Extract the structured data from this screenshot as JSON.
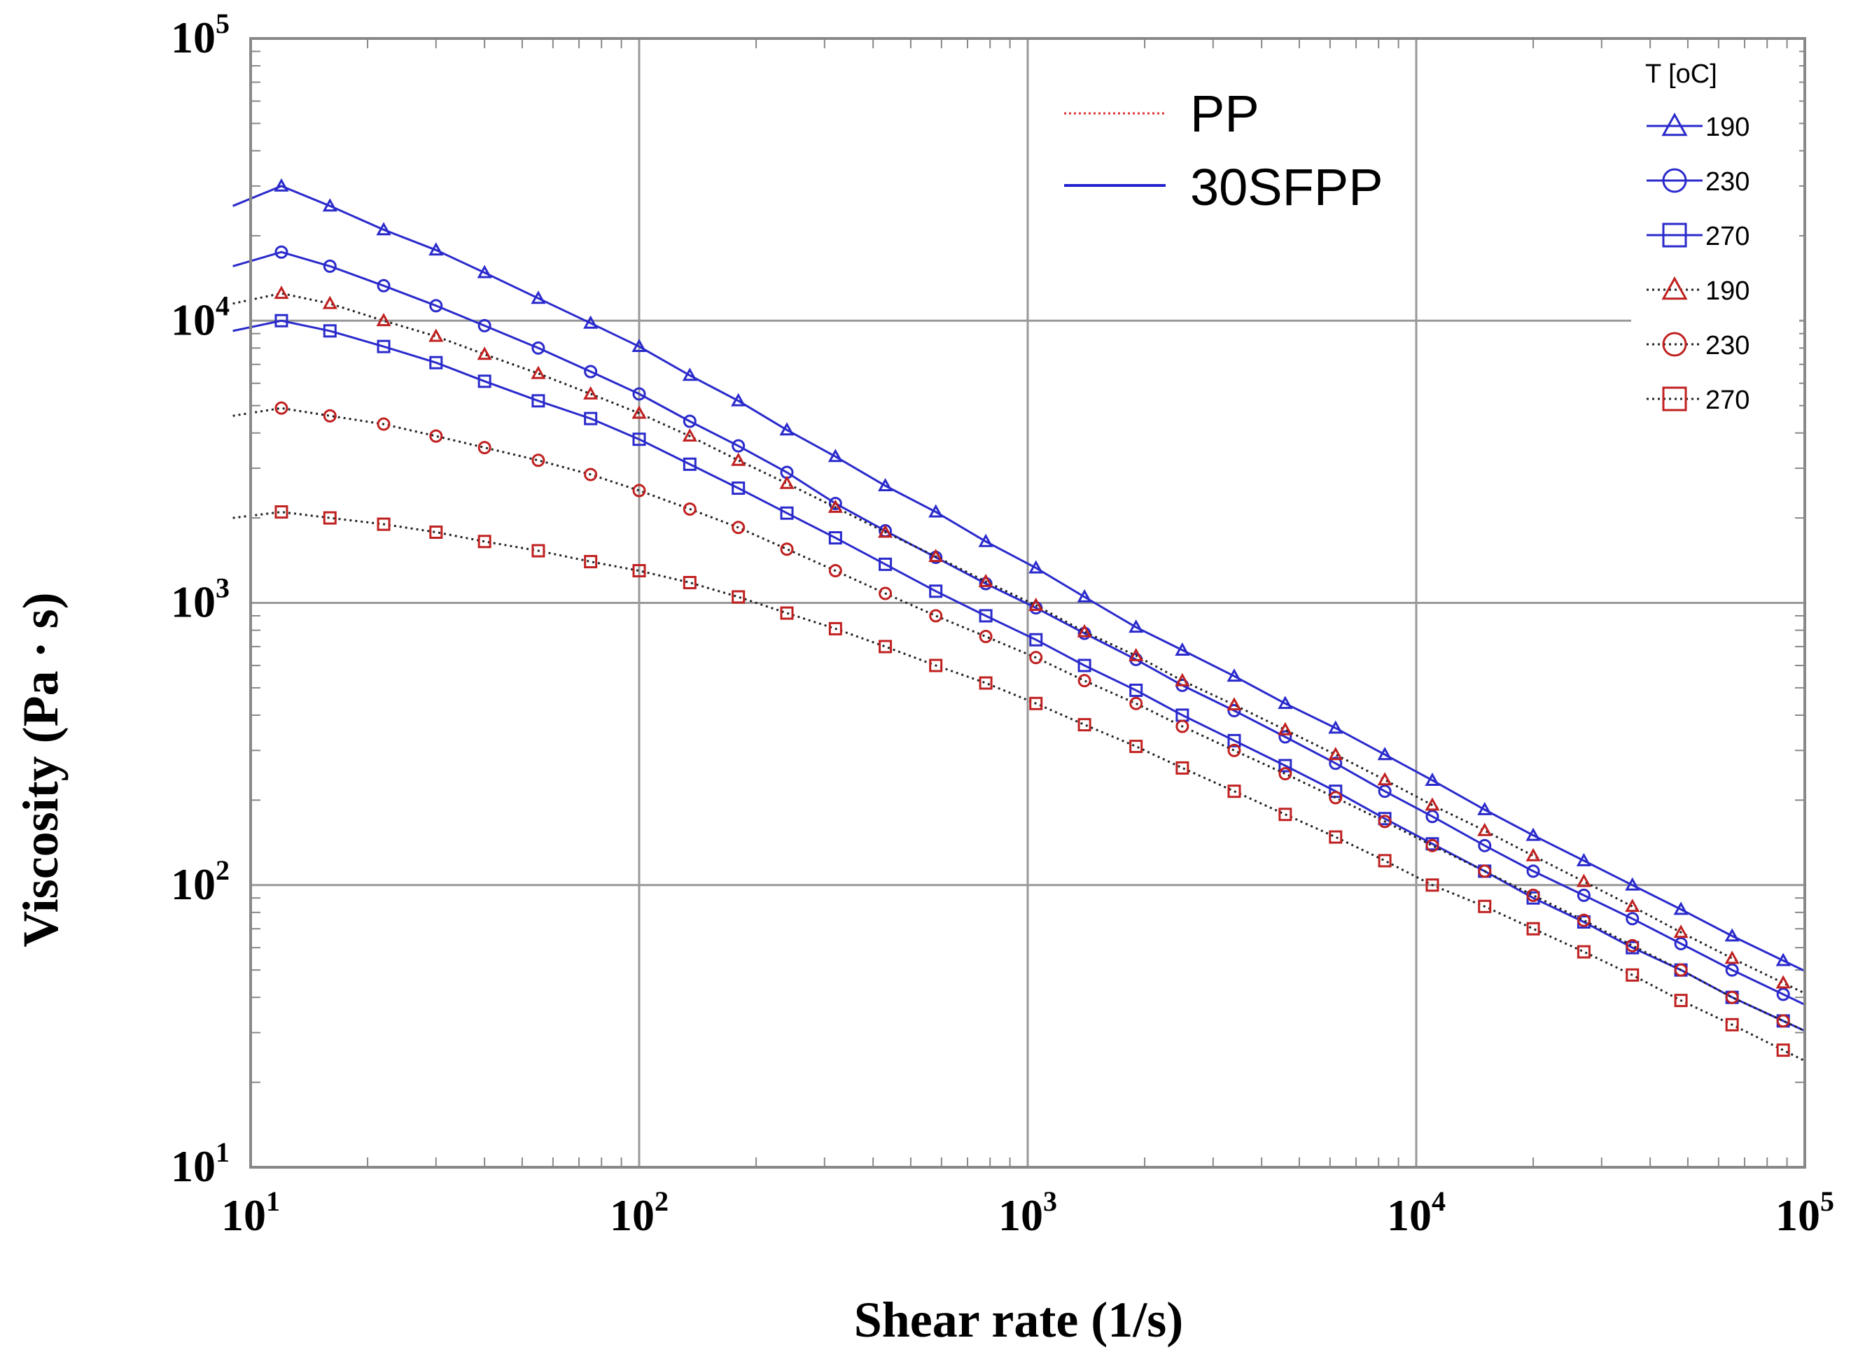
{
  "chart_data": {
    "type": "line",
    "title": "",
    "xlabel": "Shear rate (1/s)",
    "ylabel": "Viscosity (Pa · s)",
    "xscale": "log",
    "yscale": "log",
    "xlim": [
      10,
      100000
    ],
    "ylim": [
      10,
      100000
    ],
    "x_ticks": [
      {
        "base": "10",
        "exp": "1",
        "value": 10
      },
      {
        "base": "10",
        "exp": "2",
        "value": 100
      },
      {
        "base": "10",
        "exp": "3",
        "value": 1000
      },
      {
        "base": "10",
        "exp": "4",
        "value": 10000
      },
      {
        "base": "10",
        "exp": "5",
        "value": 100000
      }
    ],
    "y_ticks": [
      {
        "base": "10",
        "exp": "1",
        "value": 10
      },
      {
        "base": "10",
        "exp": "2",
        "value": 100
      },
      {
        "base": "10",
        "exp": "3",
        "value": 1000
      },
      {
        "base": "10",
        "exp": "4",
        "value": 10000
      },
      {
        "base": "10",
        "exp": "5",
        "value": 100000
      }
    ],
    "grid": true,
    "material_legend": [
      {
        "label": "PP",
        "style": "dotted",
        "color": "#e03030"
      },
      {
        "label": "30SFPP",
        "style": "solid",
        "color": "#2222cc"
      }
    ],
    "temperature_legend_title": "T [oC]",
    "x": [
      12,
      16,
      22,
      30,
      40,
      55,
      75,
      100,
      135,
      180,
      240,
      320,
      430,
      580,
      780,
      1050,
      1400,
      1900,
      2500,
      3400,
      4600,
      6200,
      8300,
      11000,
      15000,
      20000,
      27000,
      36000,
      48000,
      65000,
      88000
    ],
    "series": [
      {
        "name": "190",
        "material": "30SFPP",
        "marker": "triangle",
        "color": "#2a2acc",
        "line_color": "#2a2acc",
        "values": [
          30000,
          25500,
          21000,
          17800,
          14800,
          12000,
          9800,
          8100,
          6400,
          5200,
          4100,
          3300,
          2600,
          2100,
          1650,
          1330,
          1050,
          820,
          680,
          550,
          440,
          360,
          290,
          235,
          185,
          150,
          122,
          100,
          82,
          66,
          54
        ]
      },
      {
        "name": "230",
        "material": "30SFPP",
        "marker": "circle",
        "color": "#2a2acc",
        "line_color": "#2a2acc",
        "values": [
          17500,
          15600,
          13300,
          11300,
          9600,
          8000,
          6600,
          5500,
          4400,
          3600,
          2900,
          2250,
          1800,
          1450,
          1170,
          960,
          780,
          630,
          510,
          415,
          335,
          270,
          215,
          175,
          138,
          112,
          92,
          76,
          62,
          50,
          41
        ]
      },
      {
        "name": "270",
        "material": "30SFPP",
        "marker": "square",
        "color": "#2a2acc",
        "line_color": "#2a2acc",
        "values": [
          10000,
          9200,
          8100,
          7100,
          6100,
          5200,
          4500,
          3800,
          3100,
          2550,
          2080,
          1700,
          1370,
          1100,
          900,
          740,
          600,
          490,
          400,
          325,
          265,
          215,
          172,
          140,
          112,
          90,
          74,
          60,
          50,
          40,
          33
        ]
      },
      {
        "name": "190",
        "material": "PP",
        "marker": "triangle",
        "color": "#c02020",
        "line_color": "#222222",
        "values": [
          12500,
          11500,
          10000,
          8800,
          7600,
          6500,
          5500,
          4700,
          3900,
          3200,
          2650,
          2180,
          1780,
          1460,
          1190,
          980,
          790,
          650,
          530,
          435,
          355,
          290,
          236,
          192,
          156,
          127,
          103,
          84,
          68,
          55,
          45
        ]
      },
      {
        "name": "230",
        "material": "PP",
        "marker": "circle",
        "color": "#c02020",
        "line_color": "#222222",
        "values": [
          4900,
          4600,
          4300,
          3900,
          3550,
          3200,
          2850,
          2500,
          2150,
          1850,
          1550,
          1300,
          1080,
          900,
          760,
          640,
          530,
          440,
          365,
          300,
          248,
          204,
          168,
          138,
          112,
          92,
          75,
          61,
          50,
          40,
          33
        ]
      },
      {
        "name": "270",
        "material": "PP",
        "marker": "square",
        "color": "#c02020",
        "line_color": "#222222",
        "values": [
          2100,
          2000,
          1900,
          1780,
          1650,
          1530,
          1400,
          1300,
          1180,
          1050,
          920,
          810,
          700,
          600,
          520,
          440,
          370,
          310,
          260,
          215,
          178,
          148,
          122,
          100,
          84,
          70,
          58,
          48,
          39,
          32,
          26
        ]
      }
    ]
  }
}
